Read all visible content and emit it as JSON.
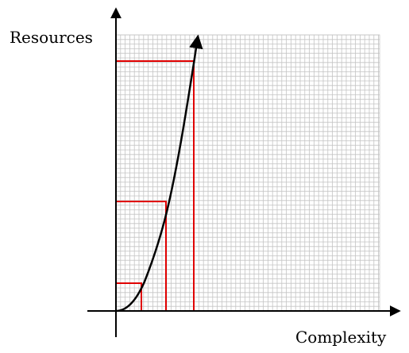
{
  "diagram": {
    "y_axis_label": "Resources",
    "x_axis_label": "Complexity",
    "colors": {
      "grid_line": "#c4c4c4",
      "grid_background": "#ffffff",
      "axis": "#000000",
      "curve": "#000000",
      "guide_lines": "#e00000"
    }
  }
}
